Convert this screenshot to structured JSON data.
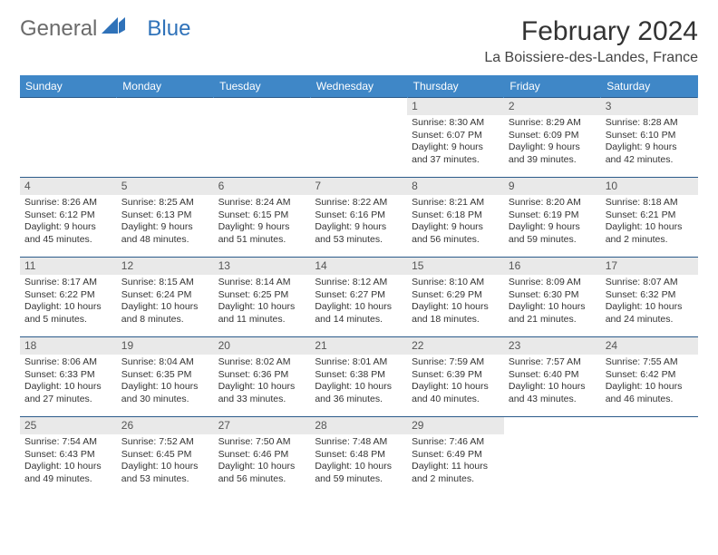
{
  "brand": {
    "part1": "General",
    "part2": "Blue"
  },
  "title": "February 2024",
  "location": "La Boissiere-des-Landes, France",
  "colors": {
    "header_bg": "#3f87c7",
    "header_text": "#ffffff",
    "row_border": "#2c5b8a",
    "daynum_bg": "#e9e9e9",
    "brand_gray": "#6b6b6b",
    "brand_blue": "#2f72b9"
  },
  "weekdays": [
    "Sunday",
    "Monday",
    "Tuesday",
    "Wednesday",
    "Thursday",
    "Friday",
    "Saturday"
  ],
  "weeks": [
    [
      {
        "empty": true
      },
      {
        "empty": true
      },
      {
        "empty": true
      },
      {
        "empty": true
      },
      {
        "day": "1",
        "sunrise": "8:30 AM",
        "sunset": "6:07 PM",
        "daylight": "9 hours and 37 minutes."
      },
      {
        "day": "2",
        "sunrise": "8:29 AM",
        "sunset": "6:09 PM",
        "daylight": "9 hours and 39 minutes."
      },
      {
        "day": "3",
        "sunrise": "8:28 AM",
        "sunset": "6:10 PM",
        "daylight": "9 hours and 42 minutes."
      }
    ],
    [
      {
        "day": "4",
        "sunrise": "8:26 AM",
        "sunset": "6:12 PM",
        "daylight": "9 hours and 45 minutes."
      },
      {
        "day": "5",
        "sunrise": "8:25 AM",
        "sunset": "6:13 PM",
        "daylight": "9 hours and 48 minutes."
      },
      {
        "day": "6",
        "sunrise": "8:24 AM",
        "sunset": "6:15 PM",
        "daylight": "9 hours and 51 minutes."
      },
      {
        "day": "7",
        "sunrise": "8:22 AM",
        "sunset": "6:16 PM",
        "daylight": "9 hours and 53 minutes."
      },
      {
        "day": "8",
        "sunrise": "8:21 AM",
        "sunset": "6:18 PM",
        "daylight": "9 hours and 56 minutes."
      },
      {
        "day": "9",
        "sunrise": "8:20 AM",
        "sunset": "6:19 PM",
        "daylight": "9 hours and 59 minutes."
      },
      {
        "day": "10",
        "sunrise": "8:18 AM",
        "sunset": "6:21 PM",
        "daylight": "10 hours and 2 minutes."
      }
    ],
    [
      {
        "day": "11",
        "sunrise": "8:17 AM",
        "sunset": "6:22 PM",
        "daylight": "10 hours and 5 minutes."
      },
      {
        "day": "12",
        "sunrise": "8:15 AM",
        "sunset": "6:24 PM",
        "daylight": "10 hours and 8 minutes."
      },
      {
        "day": "13",
        "sunrise": "8:14 AM",
        "sunset": "6:25 PM",
        "daylight": "10 hours and 11 minutes."
      },
      {
        "day": "14",
        "sunrise": "8:12 AM",
        "sunset": "6:27 PM",
        "daylight": "10 hours and 14 minutes."
      },
      {
        "day": "15",
        "sunrise": "8:10 AM",
        "sunset": "6:29 PM",
        "daylight": "10 hours and 18 minutes."
      },
      {
        "day": "16",
        "sunrise": "8:09 AM",
        "sunset": "6:30 PM",
        "daylight": "10 hours and 21 minutes."
      },
      {
        "day": "17",
        "sunrise": "8:07 AM",
        "sunset": "6:32 PM",
        "daylight": "10 hours and 24 minutes."
      }
    ],
    [
      {
        "day": "18",
        "sunrise": "8:06 AM",
        "sunset": "6:33 PM",
        "daylight": "10 hours and 27 minutes."
      },
      {
        "day": "19",
        "sunrise": "8:04 AM",
        "sunset": "6:35 PM",
        "daylight": "10 hours and 30 minutes."
      },
      {
        "day": "20",
        "sunrise": "8:02 AM",
        "sunset": "6:36 PM",
        "daylight": "10 hours and 33 minutes."
      },
      {
        "day": "21",
        "sunrise": "8:01 AM",
        "sunset": "6:38 PM",
        "daylight": "10 hours and 36 minutes."
      },
      {
        "day": "22",
        "sunrise": "7:59 AM",
        "sunset": "6:39 PM",
        "daylight": "10 hours and 40 minutes."
      },
      {
        "day": "23",
        "sunrise": "7:57 AM",
        "sunset": "6:40 PM",
        "daylight": "10 hours and 43 minutes."
      },
      {
        "day": "24",
        "sunrise": "7:55 AM",
        "sunset": "6:42 PM",
        "daylight": "10 hours and 46 minutes."
      }
    ],
    [
      {
        "day": "25",
        "sunrise": "7:54 AM",
        "sunset": "6:43 PM",
        "daylight": "10 hours and 49 minutes."
      },
      {
        "day": "26",
        "sunrise": "7:52 AM",
        "sunset": "6:45 PM",
        "daylight": "10 hours and 53 minutes."
      },
      {
        "day": "27",
        "sunrise": "7:50 AM",
        "sunset": "6:46 PM",
        "daylight": "10 hours and 56 minutes."
      },
      {
        "day": "28",
        "sunrise": "7:48 AM",
        "sunset": "6:48 PM",
        "daylight": "10 hours and 59 minutes."
      },
      {
        "day": "29",
        "sunrise": "7:46 AM",
        "sunset": "6:49 PM",
        "daylight": "11 hours and 2 minutes."
      },
      {
        "empty": true
      },
      {
        "empty": true
      }
    ]
  ]
}
